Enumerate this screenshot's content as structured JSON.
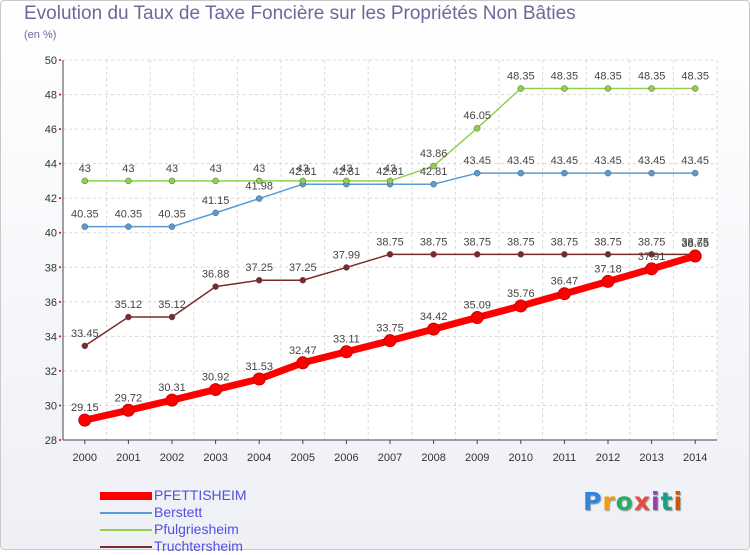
{
  "page": {
    "title": "Evolution du Taux de Taxe Foncière sur les Propriétés Non Bâties",
    "subtitle": "(en %)",
    "logo": "Proxiti"
  },
  "chart_data": {
    "type": "line",
    "title": "Evolution du Taux de Taxe Foncière sur les Propriétés Non Bâties",
    "ylabel": "(en %)",
    "xlabel": "",
    "ylim": [
      28,
      50
    ],
    "yticks": [
      28,
      30,
      32,
      34,
      36,
      38,
      40,
      42,
      44,
      46,
      48,
      50
    ],
    "grid": true,
    "legend_position": "bottom-left",
    "x": [
      "2000",
      "2001",
      "2002",
      "2003",
      "2004",
      "2005",
      "2006",
      "2007",
      "2008",
      "2009",
      "2010",
      "2011",
      "2012",
      "2013",
      "2014"
    ],
    "series": [
      {
        "name": "PFETTISHEIM",
        "color": "#ff0000",
        "values": [
          29.15,
          29.72,
          30.31,
          30.92,
          31.53,
          32.47,
          33.11,
          33.75,
          34.42,
          35.09,
          35.76,
          36.47,
          37.18,
          37.91,
          38.65
        ],
        "labels": [
          "29.15",
          "29.72",
          "30.31",
          "30.92",
          "31.53",
          "32.47",
          "33.11",
          "33.75",
          "34.42",
          "35.09",
          "35.76",
          "36.47",
          "37.18",
          "37.91",
          "38.65"
        ]
      },
      {
        "name": "Berstett",
        "color": "#5b9bd5",
        "values": [
          40.35,
          40.35,
          40.35,
          41.15,
          41.98,
          42.81,
          42.81,
          42.81,
          42.81,
          43.45,
          43.45,
          43.45,
          43.45,
          43.45,
          43.45
        ],
        "labels": [
          "40.35",
          "40.35",
          "40.35",
          "41.15",
          "41.98",
          "42.81",
          "42.81",
          "42.81",
          "42.81",
          "43.45",
          "43.45",
          "43.45",
          "43.45",
          "43.45",
          "43.45"
        ]
      },
      {
        "name": "Pfulgriesheim",
        "color": "#8fd14f",
        "values": [
          43,
          43,
          43,
          43,
          43,
          43,
          43,
          43,
          43.86,
          46.05,
          48.35,
          48.35,
          48.35,
          48.35,
          48.35
        ],
        "labels": [
          "43",
          "43",
          "43",
          "43",
          "43",
          "43",
          "43",
          "43",
          "43.86",
          "46.05",
          "48.35",
          "48.35",
          "48.35",
          "48.35",
          "48.35"
        ]
      },
      {
        "name": "Truchtersheim",
        "color": "#7b2a2a",
        "values": [
          33.45,
          35.12,
          35.12,
          36.88,
          37.25,
          37.25,
          37.99,
          38.75,
          38.75,
          38.75,
          38.75,
          38.75,
          38.75,
          38.75,
          38.75
        ],
        "labels": [
          "33.45",
          "35.12",
          "35.12",
          "36.88",
          "37.25",
          "37.25",
          "37.99",
          "38.75",
          "38.75",
          "38.75",
          "38.75",
          "38.75",
          "38.75",
          "38.75",
          "38.75"
        ]
      }
    ]
  }
}
